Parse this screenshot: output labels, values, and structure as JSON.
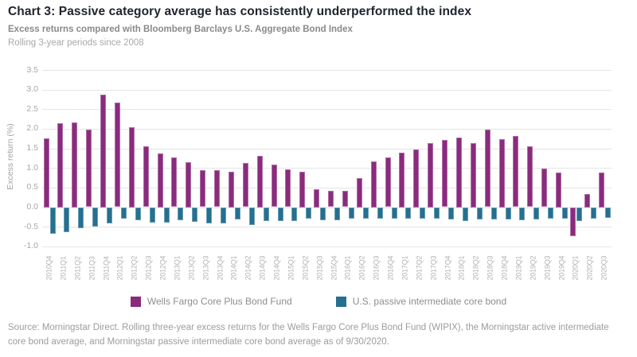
{
  "header": {
    "title": "Chart 3: Passive category average has consistently underperformed the index",
    "subtitle": "Excess returns compared with Bloomberg Barclays U.S. Aggregate Bond Index",
    "note": "Rolling 3-year periods since 2008"
  },
  "chart_data": {
    "type": "bar",
    "title": "Chart 3: Passive category average has consistently underperformed the index",
    "subtitle": "Excess returns compared with Bloomberg Barclays U.S. Aggregate Bond Index",
    "annotation": "Rolling 3-year periods since 2008",
    "xlabel": "",
    "ylabel": "Excess return (%)",
    "ylim": [
      -1.0,
      3.5
    ],
    "ytick_step": 0.5,
    "grid": true,
    "legend_position": "bottom",
    "categories": [
      "2010Q4",
      "2011Q1",
      "2011Q2",
      "2011Q3",
      "2011Q4",
      "2012Q1",
      "2012Q2",
      "2012Q3",
      "2012Q4",
      "2013Q1",
      "2013Q2",
      "2013Q3",
      "2013Q4",
      "2014Q1",
      "2014Q2",
      "2014Q3",
      "2014Q4",
      "2015Q1",
      "2015Q2",
      "2015Q3",
      "2015Q4",
      "2016Q1",
      "2016Q2",
      "2016Q3",
      "2016Q4",
      "2017Q1",
      "2017Q2",
      "2017Q3",
      "2017Q4",
      "2018Q1",
      "2018Q2",
      "2018Q3",
      "2018Q4",
      "2019Q1",
      "2019Q2",
      "2019Q3",
      "2019Q4",
      "2020Q1",
      "2020Q2",
      "2020Q3"
    ],
    "series": [
      {
        "name": "Wells Fargo Core Plus Bond Fund",
        "color": "#8A2B7D",
        "values": [
          1.76,
          2.15,
          2.16,
          1.98,
          2.88,
          2.67,
          2.05,
          1.56,
          1.37,
          1.26,
          1.15,
          0.95,
          0.95,
          0.9,
          1.12,
          1.32,
          1.08,
          0.97,
          0.9,
          0.46,
          0.42,
          0.41,
          0.74,
          1.16,
          1.26,
          1.39,
          1.47,
          1.63,
          1.71,
          1.77,
          1.64,
          1.97,
          1.74,
          1.82,
          1.56,
          0.99,
          0.89,
          -0.73,
          0.34,
          0.89
        ]
      },
      {
        "name": "U.S. passive intermediate core bond",
        "color": "#256F90",
        "values": [
          -0.68,
          -0.63,
          -0.53,
          -0.5,
          -0.41,
          -0.29,
          -0.33,
          -0.4,
          -0.4,
          -0.34,
          -0.38,
          -0.42,
          -0.42,
          -0.32,
          -0.45,
          -0.36,
          -0.36,
          -0.36,
          -0.3,
          -0.34,
          -0.34,
          -0.3,
          -0.3,
          -0.29,
          -0.29,
          -0.3,
          -0.29,
          -0.3,
          -0.32,
          -0.36,
          -0.32,
          -0.32,
          -0.32,
          -0.34,
          -0.32,
          -0.3,
          -0.3,
          -0.36,
          -0.3,
          -0.28
        ]
      }
    ]
  },
  "footer": {
    "source": "Source: Morningstar Direct. Rolling three-year excess returns for the Wells Fargo Core Plus Bond Fund (WIPIX), the Morningstar active intermediate core bond average, and Morningstar passive intermediate core bond average as of 9/30/2020."
  },
  "colors": {
    "accent_purple": "#8A2B7D",
    "accent_teal": "#256F90",
    "gridline": "#e4e4e4",
    "title_text": "#21242f",
    "muted_text": "#9c9c9c"
  }
}
